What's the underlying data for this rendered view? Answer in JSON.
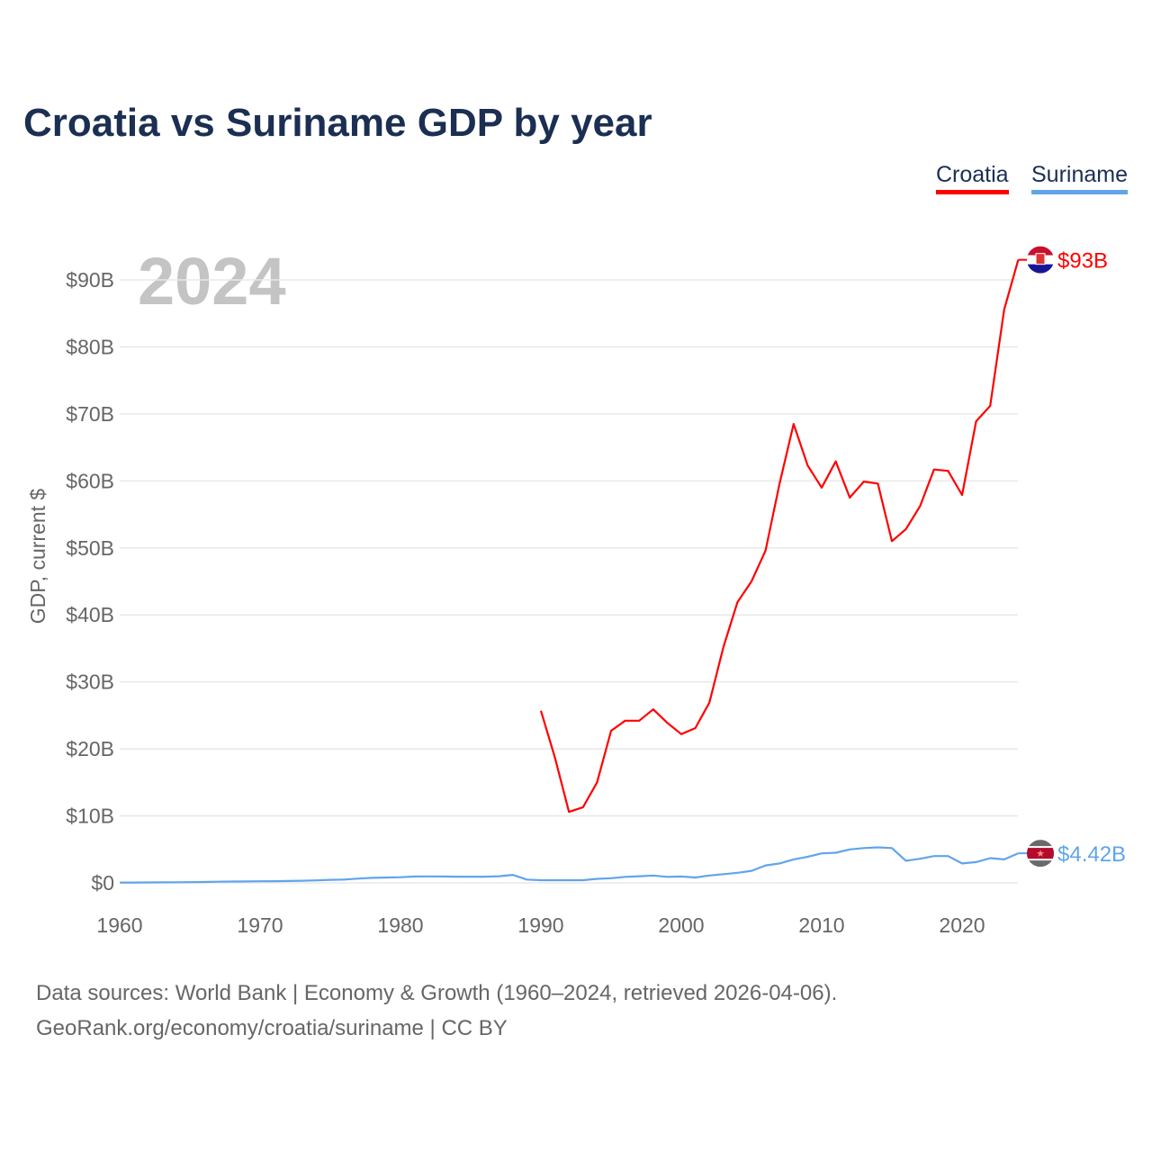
{
  "title": "Croatia vs Suriname GDP by year",
  "legend": [
    {
      "label": "Croatia",
      "color": "#ff0000"
    },
    {
      "label": "Suriname",
      "color": "#60a5ea"
    }
  ],
  "footer": {
    "line1": "Data sources: World Bank | Economy & Growth (1960–2024, retrieved 2026-04-06).",
    "line2": "GeoRank.org/economy/croatia/suriname | CC BY"
  },
  "chart_data": {
    "type": "line",
    "title": "Croatia vs Suriname GDP by year",
    "year_label": "2024",
    "xlabel": "",
    "ylabel": "GDP, current $",
    "xlim": [
      1960,
      2024
    ],
    "ylim": [
      0,
      90
    ],
    "x_ticks": [
      1960,
      1970,
      1980,
      1990,
      2000,
      2010,
      2020
    ],
    "y_ticks": [
      {
        "v": 0,
        "label": "$0"
      },
      {
        "v": 10,
        "label": "$10B"
      },
      {
        "v": 20,
        "label": "$20B"
      },
      {
        "v": 30,
        "label": "$30B"
      },
      {
        "v": 40,
        "label": "$40B"
      },
      {
        "v": 50,
        "label": "$50B"
      },
      {
        "v": 60,
        "label": "$60B"
      },
      {
        "v": 70,
        "label": "$70B"
      },
      {
        "v": 80,
        "label": "$80B"
      },
      {
        "v": 90,
        "label": "$90B"
      }
    ],
    "grid": true,
    "legend_position": "top-right",
    "series": [
      {
        "name": "Croatia",
        "color": "#ff0000",
        "end_label": "$93B",
        "start_year": 1990,
        "values": [
          25.7,
          18.7,
          10.6,
          11.3,
          15.0,
          22.7,
          24.2,
          24.2,
          25.9,
          23.9,
          22.2,
          23.1,
          26.9,
          35.2,
          41.9,
          45.0,
          49.6,
          59.6,
          68.5,
          62.3,
          59.0,
          62.9,
          57.5,
          59.9,
          59.6,
          51.0,
          52.8,
          56.2,
          61.7,
          61.5,
          57.9,
          68.9,
          71.2,
          85.6,
          93.0
        ]
      },
      {
        "name": "Suriname",
        "color": "#60a5ea",
        "end_label": "$4.42B",
        "start_year": 1960,
        "values": [
          0.05,
          0.06,
          0.07,
          0.08,
          0.09,
          0.11,
          0.14,
          0.17,
          0.2,
          0.22,
          0.24,
          0.26,
          0.28,
          0.32,
          0.38,
          0.45,
          0.5,
          0.65,
          0.75,
          0.8,
          0.85,
          0.95,
          0.97,
          0.95,
          0.93,
          0.93,
          0.93,
          1.0,
          1.2,
          0.5,
          0.4,
          0.4,
          0.4,
          0.4,
          0.6,
          0.7,
          0.9,
          1.0,
          1.1,
          0.9,
          0.95,
          0.8,
          1.1,
          1.3,
          1.5,
          1.8,
          2.6,
          2.9,
          3.5,
          3.9,
          4.4,
          4.5,
          5.0,
          5.2,
          5.3,
          5.2,
          3.3,
          3.6,
          4.0,
          4.0,
          2.9,
          3.1,
          3.7,
          3.5,
          4.42
        ]
      }
    ]
  }
}
